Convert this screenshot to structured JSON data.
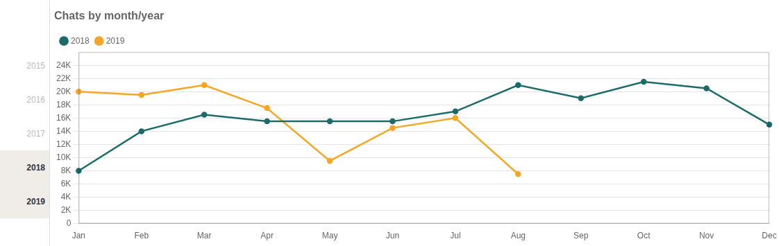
{
  "chart_data": {
    "type": "line",
    "title": "Chats by month/year",
    "categories": [
      "Jan",
      "Feb",
      "Mar",
      "Apr",
      "May",
      "Jun",
      "Jul",
      "Aug",
      "Sep",
      "Oct",
      "Nov",
      "Dec"
    ],
    "series": [
      {
        "name": "2018",
        "color": "#1c6b6b",
        "marker": "circle",
        "values": [
          8000,
          14000,
          16500,
          15500,
          15500,
          15500,
          17000,
          21000,
          19000,
          21500,
          20500,
          15000
        ]
      },
      {
        "name": "2019",
        "color": "#f5a623",
        "marker": "circle",
        "values": [
          20000,
          19500,
          21000,
          17500,
          9500,
          14500,
          16000,
          7500,
          null,
          null,
          null,
          null
        ]
      }
    ],
    "ylim": [
      0,
      26000
    ],
    "yticks": [
      {
        "value": 0,
        "label": "0"
      },
      {
        "value": 2000,
        "label": "2K"
      },
      {
        "value": 4000,
        "label": "4K"
      },
      {
        "value": 6000,
        "label": "6K"
      },
      {
        "value": 8000,
        "label": "8K"
      },
      {
        "value": 10000,
        "label": "10K"
      },
      {
        "value": 12000,
        "label": "12K"
      },
      {
        "value": 14000,
        "label": "14K"
      },
      {
        "value": 16000,
        "label": "16K"
      },
      {
        "value": 18000,
        "label": "18K"
      },
      {
        "value": 20000,
        "label": "20K"
      },
      {
        "value": 22000,
        "label": "22K"
      },
      {
        "value": 24000,
        "label": "24K"
      }
    ],
    "grid": true,
    "legend": "top",
    "annotations": [
      "2015",
      "2016",
      "2017",
      "2018",
      "2019"
    ]
  }
}
